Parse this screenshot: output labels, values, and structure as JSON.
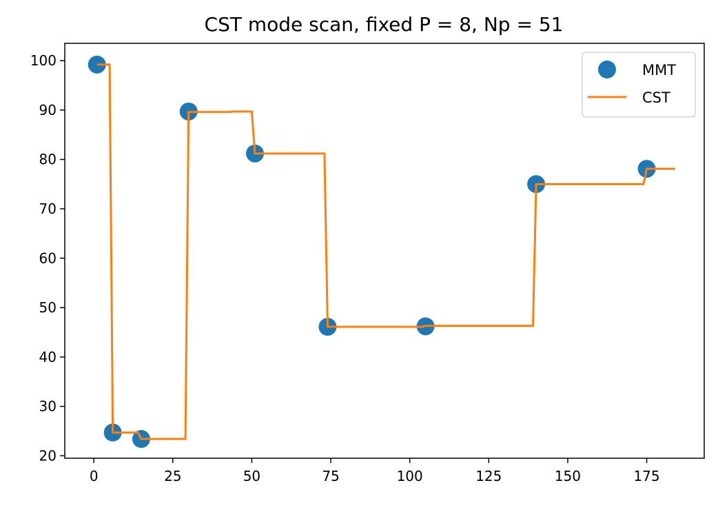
{
  "chart_data": {
    "type": "line",
    "title": "CST mode scan, fixed P = 8, Np = 51",
    "xlabel": "",
    "ylabel": "",
    "xlim": [
      -9.2,
      193.2
    ],
    "ylim": [
      19.5,
      103.5
    ],
    "x_ticks": [
      0,
      25,
      50,
      75,
      100,
      125,
      150,
      175
    ],
    "y_ticks": [
      20,
      30,
      40,
      50,
      60,
      70,
      80,
      90,
      100
    ],
    "grid": false,
    "legend": {
      "position": "top-right",
      "entries": [
        "MMT",
        "CST"
      ]
    },
    "colors": {
      "MMT": "#1f77b4",
      "CST": "#ff7f0e"
    },
    "series": [
      {
        "name": "MMT",
        "style": "markers",
        "points": [
          [
            1,
            99.2
          ],
          [
            6,
            24.7
          ],
          [
            15,
            23.4
          ],
          [
            30,
            89.7
          ],
          [
            51,
            81.2
          ],
          [
            74,
            46.1
          ],
          [
            105,
            46.2
          ],
          [
            140,
            75.0
          ],
          [
            175,
            78.1
          ]
        ]
      },
      {
        "name": "CST",
        "style": "line",
        "points": [
          [
            1,
            99.2
          ],
          [
            5,
            99.2
          ],
          [
            6,
            24.7
          ],
          [
            14,
            24.7
          ],
          [
            15,
            23.4
          ],
          [
            29,
            23.4
          ],
          [
            30,
            89.6
          ],
          [
            43,
            89.6
          ],
          [
            44,
            89.7
          ],
          [
            50,
            89.7
          ],
          [
            51,
            81.2
          ],
          [
            73,
            81.2
          ],
          [
            74,
            46.1
          ],
          [
            104,
            46.1
          ],
          [
            105,
            46.3
          ],
          [
            139,
            46.3
          ],
          [
            140,
            75.0
          ],
          [
            174,
            75.0
          ],
          [
            175,
            78.1
          ],
          [
            184,
            78.1
          ]
        ]
      }
    ]
  }
}
